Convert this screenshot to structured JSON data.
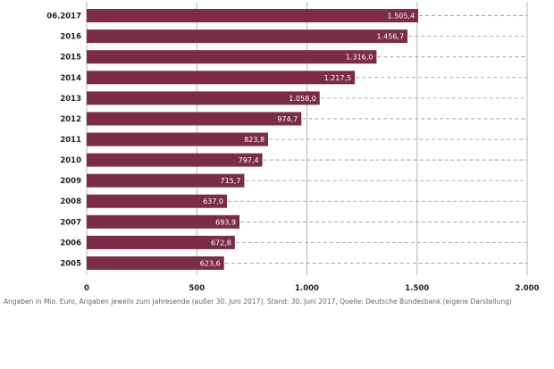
{
  "chart_data": {
    "type": "bar",
    "orientation": "horizontal",
    "categories": [
      "06.2017",
      "2016",
      "2015",
      "2014",
      "2013",
      "2012",
      "2011",
      "2010",
      "2009",
      "2008",
      "2007",
      "2006",
      "2005"
    ],
    "values": [
      1505.4,
      1456.7,
      1316.0,
      1217.5,
      1058.0,
      974.7,
      823.8,
      797.4,
      715.7,
      637.0,
      693.9,
      672.8,
      623.6
    ],
    "value_labels": [
      "1.505,4",
      "1.456,7",
      "1.316,0",
      "1.217,5",
      "1.058,0",
      "974,7",
      "823,8",
      "797,4",
      "715,7",
      "637,0",
      "693,9",
      "672,8",
      "623,6"
    ],
    "xlim": [
      0,
      2000
    ],
    "x_ticks": [
      0,
      500,
      1000,
      1500,
      2000
    ],
    "x_tick_labels": [
      "0",
      "500",
      "1.000",
      "1.500",
      "2.000"
    ],
    "grid": true,
    "colors": {
      "bar": "#7b2d45",
      "grid": "#b5b5b5",
      "dashes": "#9a9a9a"
    }
  },
  "footnote": "Angaben in Mio. Euro, Angaben jeweils zum Jahresende (außer 30. Juni 2017), Stand: 30. Juni 2017, Quelle: Deutsche Bundesbank (eigene Darstellung)"
}
